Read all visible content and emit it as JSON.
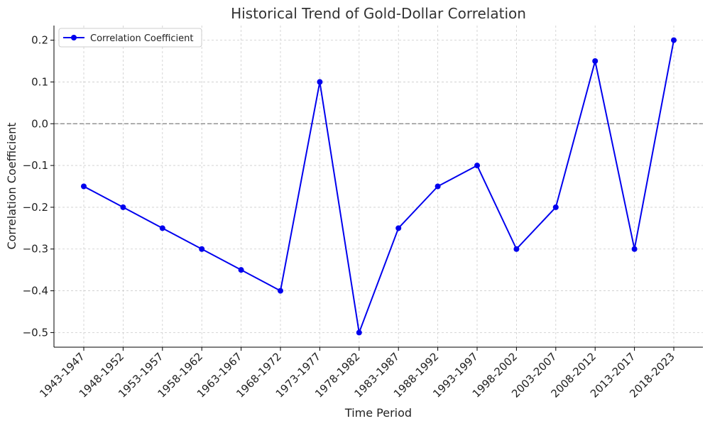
{
  "chart_data": {
    "type": "line",
    "title": "Historical Trend of Gold-Dollar Correlation",
    "xlabel": "Time Period",
    "ylabel": "Correlation Coefficient",
    "categories": [
      "1943-1947",
      "1948-1952",
      "1953-1957",
      "1958-1962",
      "1963-1967",
      "1968-1972",
      "1973-1977",
      "1978-1982",
      "1983-1987",
      "1988-1992",
      "1993-1997",
      "1998-2002",
      "2003-2007",
      "2008-2012",
      "2013-2017",
      "2018-2023"
    ],
    "series": [
      {
        "name": "Correlation Coefficient",
        "color": "#0000ee",
        "values": [
          -0.15,
          -0.2,
          -0.25,
          -0.3,
          -0.35,
          -0.4,
          0.1,
          -0.5,
          -0.25,
          -0.15,
          -0.1,
          -0.3,
          -0.2,
          0.15,
          -0.3,
          0.2
        ]
      }
    ],
    "ylim": [
      -0.535,
      0.235
    ],
    "yticks": [
      0.2,
      0.1,
      0.0,
      -0.1,
      -0.2,
      -0.3,
      -0.4,
      -0.5
    ],
    "ytick_labels": [
      "0.2",
      "0.1",
      "0.0",
      "−0.1",
      "−0.2",
      "−0.3",
      "−0.4",
      "−0.5"
    ],
    "reference_line": {
      "y": 0.0,
      "color": "#808080",
      "style": "dashed"
    },
    "grid": true,
    "legend_position": "top-left"
  }
}
